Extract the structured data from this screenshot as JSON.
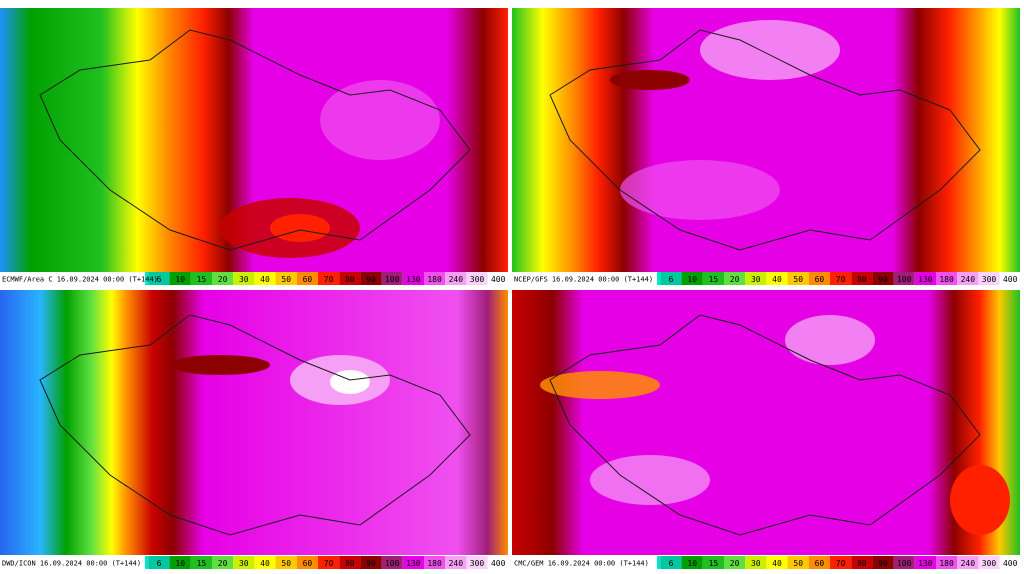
{
  "panels": [
    {
      "label": "ECMWF/Area C 16.09.2024 00:00 (T+144)"
    },
    {
      "label": "NCEP/GFS 16.09.2024 00:00 (T+144)"
    },
    {
      "label": "DWD/ICON 16.09.2024 00:00 (T+144)"
    },
    {
      "label": "CMC/GEM 16.09.2024 00:00 (T+144)"
    }
  ],
  "legend": {
    "lead_colors": [
      "#5a2ca0",
      "#3c3cdc",
      "#2864f0",
      "#1e90ff",
      "#28b4ff",
      "#00d2ff",
      "#00e6c8"
    ],
    "levels": [
      6,
      10,
      15,
      20,
      30,
      40,
      50,
      60,
      70,
      80,
      90,
      100,
      130,
      180,
      240,
      300,
      400
    ],
    "colors": [
      "#00c8a0",
      "#00a000",
      "#20c020",
      "#60e040",
      "#c8f000",
      "#ffff00",
      "#ffc800",
      "#ff8c00",
      "#ff2000",
      "#c80000",
      "#8c0000",
      "#a01e78",
      "#e600e6",
      "#f050f0",
      "#f5a0f5",
      "#fad2fa",
      "#ffffff"
    ]
  }
}
